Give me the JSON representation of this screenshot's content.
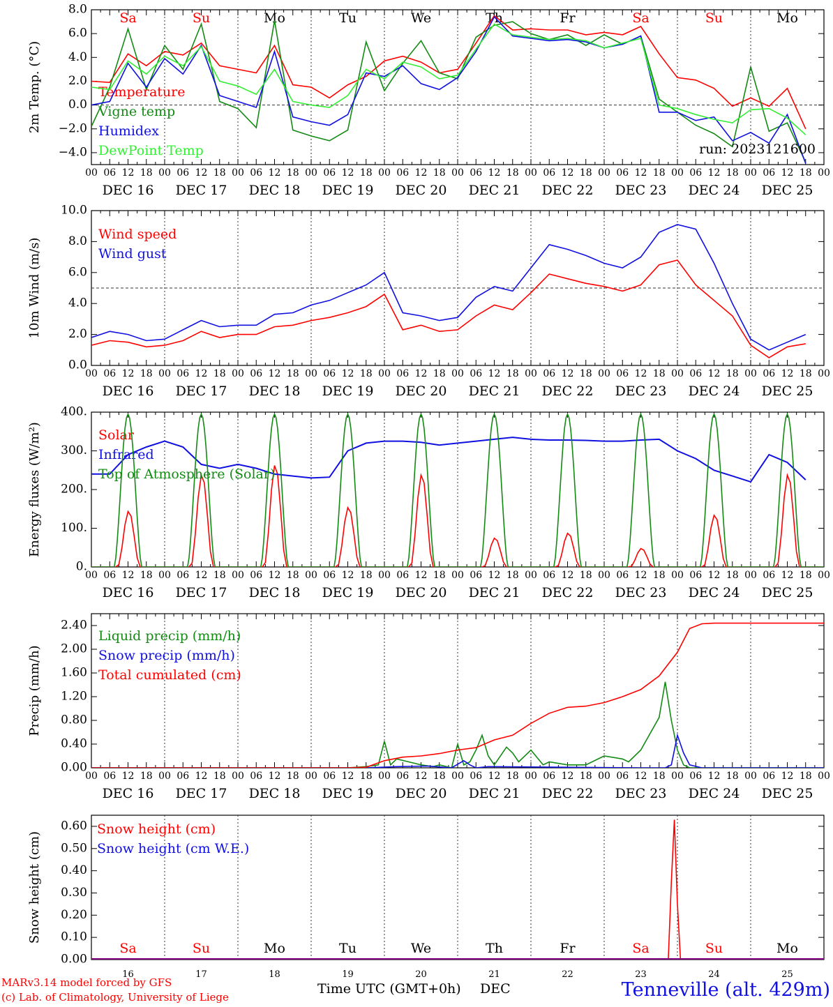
{
  "footer": {
    "model_credit": "MARv3.14 model forced by GFS",
    "lab_credit": "(c) Lab. of Climatology, University of Liege",
    "x_title": "Time UTC (GMT+0h)",
    "month_label": "DEC",
    "station": "Tenneville (alt. 429m)"
  },
  "colors": {
    "red": "#ff0000",
    "green": "#138a13",
    "blue": "#1010e0",
    "lightgreen": "#33ee33",
    "purple": "#800080",
    "black": "#000000",
    "grid": "#333333"
  },
  "days": [
    {
      "abbr": "Sa",
      "weekend": true,
      "date": "DEC 16",
      "num": "16"
    },
    {
      "abbr": "Su",
      "weekend": true,
      "date": "DEC 17",
      "num": "17"
    },
    {
      "abbr": "Mo",
      "weekend": false,
      "date": "DEC 18",
      "num": "18"
    },
    {
      "abbr": "Tu",
      "weekend": false,
      "date": "DEC 19",
      "num": "19"
    },
    {
      "abbr": "We",
      "weekend": false,
      "date": "DEC 20",
      "num": "20"
    },
    {
      "abbr": "Th",
      "weekend": false,
      "date": "DEC 21",
      "num": "21"
    },
    {
      "abbr": "Fr",
      "weekend": false,
      "date": "DEC 22",
      "num": "22"
    },
    {
      "abbr": "Sa",
      "weekend": true,
      "date": "DEC 23",
      "num": "23"
    },
    {
      "abbr": "Su",
      "weekend": true,
      "date": "DEC 24",
      "num": "24"
    },
    {
      "abbr": "Mo",
      "weekend": false,
      "date": "DEC 25",
      "num": "25"
    }
  ],
  "hour_ticks": [
    "00",
    "06",
    "12",
    "18"
  ],
  "chart_data": [
    {
      "id": "temp",
      "type": "line",
      "ylabel": "2m Temp. (°C)",
      "ylim": [
        -5,
        8
      ],
      "yticks": [
        "8.0",
        "6.0",
        "4.0",
        "2.0",
        "0.0",
        "−2.0",
        "−4.0"
      ],
      "ytick_values": [
        8,
        6,
        4,
        2,
        0,
        -2,
        -4
      ],
      "hline": 0,
      "run_label": "run: 2023121600",
      "show_day_abbr": true,
      "x_hours": [
        0,
        6,
        12,
        18,
        24,
        30,
        36,
        42,
        48,
        54,
        60,
        66,
        72,
        78,
        84,
        90,
        96,
        102,
        108,
        114,
        120,
        126,
        132,
        138,
        144,
        150,
        156,
        162,
        168,
        174,
        180,
        186,
        192,
        198,
        204,
        210,
        216,
        222,
        228,
        234
      ],
      "series": [
        {
          "name": "Temperature",
          "color": "red",
          "values": [
            2.0,
            1.9,
            4.3,
            3.3,
            4.5,
            4.2,
            5.2,
            3.3,
            3.0,
            2.7,
            5.0,
            1.7,
            1.5,
            0.6,
            1.7,
            2.4,
            3.7,
            4.1,
            3.6,
            2.7,
            3.0,
            5.2,
            7.5,
            6.3,
            6.4,
            6.3,
            6.3,
            5.9,
            6.1,
            5.9,
            6.6,
            4.3,
            2.3,
            2.1,
            1.4,
            -0.1,
            0.6,
            -0.1,
            1.4,
            -2.0
          ]
        },
        {
          "name": "Vigne temp",
          "color": "green",
          "values": [
            -1.8,
            1.5,
            6.4,
            1.3,
            5.0,
            3.0,
            6.8,
            0.3,
            -0.3,
            -1.9,
            7.1,
            -2.1,
            -2.6,
            -3.0,
            -2.1,
            5.3,
            1.2,
            3.5,
            5.4,
            2.7,
            2.2,
            5.7,
            6.7,
            7.0,
            6.0,
            5.5,
            5.9,
            5.0,
            5.9,
            5.1,
            5.8,
            0.5,
            -0.6,
            -1.7,
            -2.4,
            -3.5,
            3.2,
            -2.2,
            -1.5,
            -4.8
          ]
        },
        {
          "name": "Humidex",
          "color": "blue",
          "values": [
            0.0,
            0.3,
            3.5,
            1.5,
            3.9,
            2.6,
            5.0,
            0.8,
            0.3,
            -0.2,
            4.5,
            -1.0,
            -1.4,
            -1.7,
            -0.8,
            2.7,
            2.4,
            3.3,
            1.8,
            1.3,
            2.3,
            4.5,
            7.4,
            5.8,
            5.6,
            5.4,
            5.5,
            5.3,
            4.8,
            5.1,
            5.8,
            -0.6,
            -0.6,
            -1.3,
            -1.0,
            -3.0,
            -2.3,
            -3.2,
            -0.8,
            -4.9
          ]
        },
        {
          "name": "DewPoint Temp",
          "color": "lightgreen",
          "values": [
            1.5,
            1.3,
            3.7,
            2.6,
            4.1,
            3.3,
            4.9,
            2.0,
            1.6,
            0.9,
            3.0,
            0.3,
            0.0,
            -0.2,
            0.8,
            3.0,
            2.2,
            3.6,
            3.2,
            2.2,
            2.5,
            4.7,
            6.8,
            5.9,
            5.7,
            5.5,
            5.6,
            5.4,
            4.8,
            5.2,
            5.6,
            0.0,
            -0.3,
            -0.8,
            -1.2,
            -1.5,
            -0.4,
            -0.3,
            -1.1,
            -2.5
          ]
        }
      ]
    },
    {
      "id": "wind",
      "type": "line",
      "ylabel": "10m Wind (m/s)",
      "ylim": [
        0,
        10
      ],
      "yticks": [
        "10.0",
        "8.0",
        "6.0",
        "4.0",
        "2.0",
        "0.0"
      ],
      "ytick_values": [
        10,
        8,
        6,
        4,
        2,
        0
      ],
      "hline": 5,
      "x_hours": [
        0,
        6,
        12,
        18,
        24,
        30,
        36,
        42,
        48,
        54,
        60,
        66,
        72,
        78,
        84,
        90,
        96,
        102,
        108,
        114,
        120,
        126,
        132,
        138,
        144,
        150,
        156,
        162,
        168,
        174,
        180,
        186,
        192,
        198,
        204,
        210,
        216,
        222,
        228,
        234
      ],
      "series": [
        {
          "name": "Wind speed",
          "color": "red",
          "values": [
            1.3,
            1.6,
            1.5,
            1.2,
            1.3,
            1.6,
            2.2,
            1.8,
            2.0,
            2.0,
            2.5,
            2.6,
            2.9,
            3.1,
            3.4,
            3.8,
            4.6,
            2.3,
            2.6,
            2.2,
            2.3,
            3.2,
            3.9,
            3.6,
            4.7,
            5.9,
            5.6,
            5.3,
            5.1,
            4.8,
            5.2,
            6.5,
            6.8,
            5.2,
            4.2,
            3.2,
            1.3,
            0.5,
            1.2,
            1.4
          ]
        },
        {
          "name": "Wind gust",
          "color": "blue",
          "values": [
            1.8,
            2.2,
            2.0,
            1.6,
            1.7,
            2.3,
            2.9,
            2.5,
            2.6,
            2.6,
            3.3,
            3.4,
            3.9,
            4.2,
            4.7,
            5.2,
            6.0,
            3.4,
            3.2,
            2.9,
            3.1,
            4.4,
            5.1,
            4.8,
            6.3,
            7.8,
            7.5,
            7.1,
            6.6,
            6.3,
            7.0,
            8.6,
            9.1,
            8.8,
            6.6,
            4.0,
            1.7,
            1.0,
            1.5,
            2.0
          ]
        }
      ]
    },
    {
      "id": "energy",
      "type": "line",
      "ylabel": "Energy fluxes (W/m²)",
      "ylim": [
        0,
        400
      ],
      "yticks": [
        "400.",
        "300.",
        "200.",
        "100.",
        "0."
      ],
      "ytick_values": [
        400,
        300,
        200,
        100,
        0
      ],
      "series": [
        {
          "name": "Solar",
          "color": "red",
          "day_peaks": [
            145,
            240,
            265,
            155,
            240,
            75,
            88,
            48,
            135,
            240
          ]
        },
        {
          "name": "Infrared",
          "color": "blue",
          "x_hours": [
            0,
            6,
            12,
            18,
            24,
            30,
            36,
            42,
            48,
            54,
            60,
            66,
            72,
            78,
            84,
            90,
            96,
            102,
            108,
            114,
            120,
            126,
            132,
            138,
            144,
            150,
            156,
            162,
            168,
            174,
            180,
            186,
            192,
            198,
            204,
            210,
            216,
            222,
            228,
            234
          ],
          "values": [
            240,
            240,
            290,
            310,
            325,
            310,
            265,
            255,
            265,
            255,
            240,
            235,
            230,
            232,
            300,
            320,
            325,
            325,
            322,
            315,
            320,
            325,
            330,
            335,
            330,
            328,
            328,
            327,
            325,
            325,
            328,
            330,
            300,
            280,
            250,
            235,
            220,
            290,
            270,
            225
          ]
        },
        {
          "name": "Top of Atmosphere (Solar)",
          "color": "green",
          "peak": 395,
          "rise_hour": 7.5,
          "set_hour": 16.5
        }
      ]
    },
    {
      "id": "precip",
      "type": "line",
      "ylabel": "Precip (mm/h)",
      "ylim": [
        0,
        2.6
      ],
      "yticks": [
        "2.40",
        "2.00",
        "1.60",
        "1.20",
        "0.80",
        "0.40",
        "0.00"
      ],
      "ytick_values": [
        2.4,
        2.0,
        1.6,
        1.2,
        0.8,
        0.4,
        0.0
      ],
      "series": [
        {
          "name": "Liquid precip (mm/h)",
          "color": "green",
          "x_hours": [
            0,
            60,
            72,
            84,
            90,
            94,
            96,
            98,
            100,
            104,
            108,
            112,
            114,
            118,
            120,
            122,
            124,
            126,
            128,
            130,
            132,
            136,
            138,
            140,
            144,
            148,
            150,
            156,
            162,
            168,
            174,
            176,
            180,
            186,
            188,
            190,
            192,
            194,
            196,
            198,
            202,
            208,
            240
          ],
          "values": [
            0,
            0,
            0,
            0,
            0.02,
            0.05,
            0.45,
            0.05,
            0.15,
            0.1,
            0.05,
            0.02,
            0.05,
            0.0,
            0.4,
            0.05,
            0.1,
            0.3,
            0.55,
            0.2,
            0.05,
            0.35,
            0.25,
            0.1,
            0.3,
            0.05,
            0.1,
            0.05,
            0.05,
            0.2,
            0.15,
            0.1,
            0.3,
            0.85,
            1.45,
            0.8,
            0.3,
            0.05,
            0.0,
            0,
            0,
            0,
            0
          ]
        },
        {
          "name": "Snow precip (mm/h)",
          "color": "blue",
          "x_hours": [
            0,
            90,
            100,
            110,
            118,
            122,
            124,
            126,
            130,
            180,
            188,
            190,
            192,
            194,
            196,
            200,
            240
          ],
          "values": [
            0,
            0,
            0.02,
            0.03,
            0.0,
            0.12,
            0.05,
            0.0,
            0.02,
            0.0,
            0.0,
            0.05,
            0.55,
            0.25,
            0.05,
            0.0,
            0
          ]
        },
        {
          "name": "Total cumulated (cm)",
          "color": "red",
          "x_hours": [
            0,
            84,
            90,
            96,
            102,
            108,
            114,
            120,
            126,
            132,
            138,
            144,
            150,
            156,
            162,
            168,
            174,
            180,
            186,
            192,
            196,
            200,
            204,
            210,
            240
          ],
          "values": [
            0,
            0,
            0.01,
            0.12,
            0.18,
            0.2,
            0.24,
            0.3,
            0.34,
            0.47,
            0.55,
            0.75,
            0.92,
            1.02,
            1.04,
            1.1,
            1.2,
            1.32,
            1.55,
            1.95,
            2.35,
            2.43,
            2.44,
            2.44,
            2.44
          ]
        }
      ]
    },
    {
      "id": "snow",
      "type": "line",
      "ylabel": "Snow height (cm)",
      "ylim": [
        0,
        0.65
      ],
      "yticks": [
        "0.60",
        "0.50",
        "0.40",
        "0.30",
        "0.20",
        "0.10",
        "0.00"
      ],
      "ytick_values": [
        0.6,
        0.5,
        0.4,
        0.3,
        0.2,
        0.1,
        0.0
      ],
      "day_abbr_bottom": true,
      "series": [
        {
          "name": "Snow height (cm)",
          "color": "red",
          "x_hours": [
            0,
            189,
            190,
            191,
            192,
            193,
            240
          ],
          "values": [
            0,
            0,
            0.35,
            0.63,
            0.25,
            0,
            0
          ]
        },
        {
          "name": "Snow height (cm W.E.)",
          "color": "blue",
          "x_hours": [
            0,
            240
          ],
          "values": [
            0,
            0
          ]
        }
      ]
    }
  ]
}
